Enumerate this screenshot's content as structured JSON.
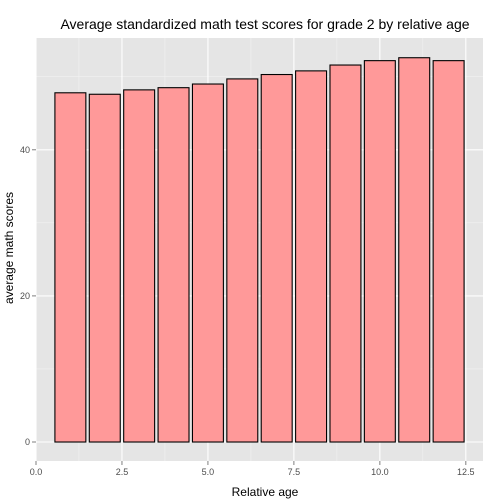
{
  "chart_data": {
    "type": "bar",
    "title": "Average standardized math test scores for grade 2 by relative age",
    "xlabel": "Relative age",
    "ylabel": "average math scores",
    "x": [
      1,
      2,
      3,
      4,
      5,
      6,
      7,
      8,
      9,
      10,
      11,
      12
    ],
    "values": [
      47.8,
      47.6,
      48.2,
      48.5,
      49.0,
      49.7,
      50.3,
      50.8,
      51.6,
      52.2,
      52.6,
      52.2
    ],
    "bar_width": 0.9,
    "xlim": [
      0,
      13
    ],
    "ylim": [
      -2.6,
      55.3
    ],
    "x_ticks": [
      0,
      2.5,
      5,
      7.5,
      10,
      12.5
    ],
    "x_tick_labels": [
      "0.0",
      "2.5",
      "5.0",
      "7.5",
      "10.0",
      "12.5"
    ],
    "y_ticks": [
      0,
      20,
      40
    ],
    "y_tick_labels": [
      "0",
      "20",
      "40"
    ],
    "grid": true,
    "legend": "none",
    "colors": {
      "panel": "#e5e5e5",
      "grid_major": "#ffffff",
      "grid_minor": "#f2f2f2",
      "bar_fill": "#ff9999",
      "bar_stroke": "#000000",
      "tick_text": "#4d4d4d"
    }
  }
}
